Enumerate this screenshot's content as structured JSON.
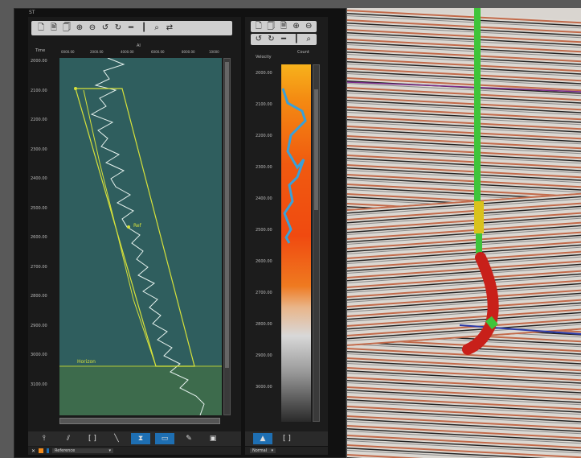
{
  "outer_panel": {
    "title": "ST"
  },
  "left_panel": {
    "toolbar": [
      "new-icon",
      "new-doc-icon",
      "copy-icon",
      "zoom-in-icon",
      "zoom-out-icon",
      "rotate-left-icon",
      "rotate-right-icon",
      "horizontal-icon",
      "vertical-icon",
      "zoom-fit-icon",
      "shuffle-icon"
    ],
    "axis_header_left": "Time",
    "axis_header_top": "AI",
    "axis_ticks_top": [
      "0000.00",
      "2000.00",
      "4000.00",
      "6000.00",
      "8000.00",
      "10000"
    ],
    "y_ticks": [
      "2000.00",
      "2100.00",
      "2200.00",
      "2300.00",
      "2400.00",
      "2500.00",
      "2600.00",
      "2700.00",
      "2800.00",
      "2900.00",
      "3000.00",
      "3100.00"
    ],
    "annotation_mid": "Ref",
    "annotation_bottom": "Horizon",
    "bottom_buttons": [
      {
        "name": "well-tool-button",
        "glyph": "⫯",
        "active": false
      },
      {
        "name": "log-tool-button",
        "glyph": "⫽",
        "active": false
      },
      {
        "name": "bracket-tool-button",
        "glyph": "[ ]",
        "active": false
      },
      {
        "name": "diagonal-tool-button",
        "glyph": "╲",
        "active": false
      },
      {
        "name": "hourglass-tool-button",
        "glyph": "⧗",
        "active": true
      },
      {
        "name": "display-tool-button",
        "glyph": "▭",
        "active": true
      },
      {
        "name": "edit-tool-button",
        "glyph": "✎",
        "active": false
      },
      {
        "name": "view-tool-button",
        "glyph": "▣",
        "active": false
      }
    ],
    "status_value": "Reference"
  },
  "mid_panel": {
    "toolbar_row1": [
      "new-icon",
      "copy-icon",
      "doc-icon",
      "zoom-in-icon",
      "zoom-out-icon"
    ],
    "toolbar_row2": [
      "rotate-left-icon",
      "rotate-right-icon",
      "horizontal-icon",
      "vertical-icon",
      "zoom-fit-icon"
    ],
    "header_left": "Velocity",
    "header_right": "Count",
    "y_ticks": [
      "2000.00",
      "2100.00",
      "2200.00",
      "2300.00",
      "2400.00",
      "2500.00",
      "2600.00",
      "2700.00",
      "2800.00",
      "2900.00",
      "3000.00"
    ],
    "bottom_buttons": [
      {
        "name": "histogram-button",
        "glyph": "▲",
        "active": true
      },
      {
        "name": "range-button",
        "glyph": "[ ]",
        "active": false
      }
    ],
    "status_value": "Normal"
  },
  "colors": {
    "plot_bg": "#2f5e5e",
    "crossplot_line": "#d7e23a",
    "accent_blue": "#1e6fb3",
    "well_green": "#3fc43a",
    "well_red": "#c8201a"
  }
}
